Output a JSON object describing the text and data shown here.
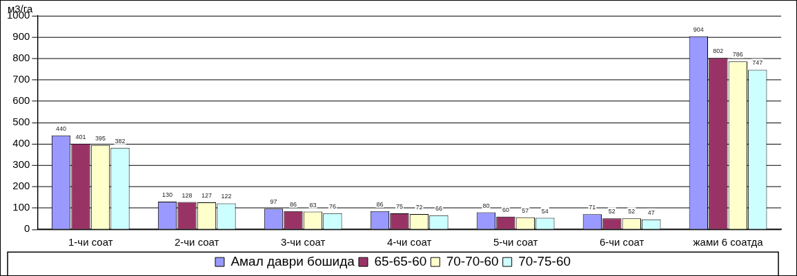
{
  "chart_data": {
    "type": "bar",
    "ylabel": "м3/га",
    "categories": [
      "1-чи соат",
      "2-чи соат",
      "3-чи соат",
      "4-чи соат",
      "5-чи соат",
      "6-чи соат",
      "жами 6 соатда"
    ],
    "series": [
      {
        "name": "Амал даври бошида",
        "color": "#9999ff",
        "values": [
          440,
          130,
          97,
          86,
          80,
          71,
          904
        ]
      },
      {
        "name": "65-65-60",
        "color": "#993366",
        "values": [
          401,
          128,
          86,
          75,
          60,
          52,
          802
        ]
      },
      {
        "name": "70-70-60",
        "color": "#ffffcc",
        "values": [
          395,
          127,
          83,
          72,
          57,
          52,
          786
        ]
      },
      {
        "name": "70-75-60",
        "color": "#ccffff",
        "values": [
          382,
          122,
          76,
          66,
          54,
          47,
          747
        ]
      }
    ],
    "ylim": [
      0,
      1000
    ],
    "yticks": [
      0,
      100,
      200,
      300,
      400,
      500,
      600,
      700,
      800,
      900,
      1000
    ],
    "grid": "y",
    "legend": "bottom",
    "data_labels": true
  }
}
